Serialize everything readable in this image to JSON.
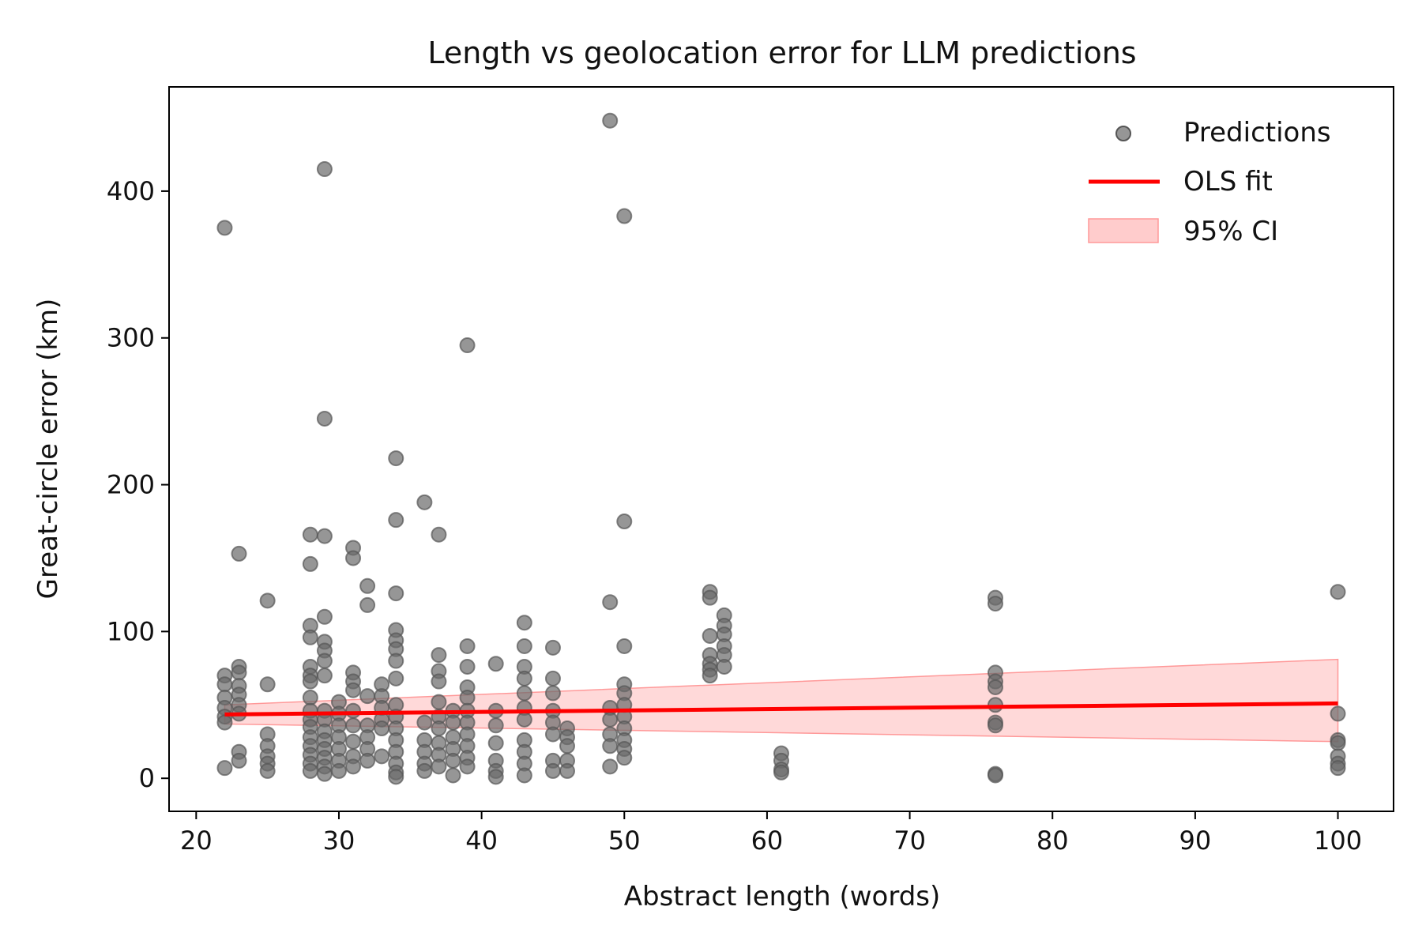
{
  "chart_data": {
    "type": "scatter",
    "title": "Length vs geolocation error for LLM predictions",
    "xlabel": "Abstract length (words)",
    "ylabel": "Great-circle error (km)",
    "xlim": [
      18.1,
      103.9
    ],
    "ylim": [
      -22.5,
      471
    ],
    "xticks": [
      20,
      30,
      40,
      50,
      60,
      70,
      80,
      90,
      100
    ],
    "yticks": [
      0,
      100,
      200,
      300,
      400
    ],
    "grid": false,
    "legend_position": "top-right",
    "legend": [
      "Predictions",
      "OLS fit",
      "95% CI"
    ],
    "colors": {
      "points": "#696969",
      "fit": "#ff0000",
      "ci_fill": "#ffcccc",
      "ci_edge": "#ff9999"
    },
    "series": [
      {
        "name": "Predictions",
        "points": [
          [
            22,
            375
          ],
          [
            22,
            70
          ],
          [
            22,
            64
          ],
          [
            22,
            55
          ],
          [
            22,
            48
          ],
          [
            22,
            42
          ],
          [
            22,
            38
          ],
          [
            22,
            7
          ],
          [
            23,
            153
          ],
          [
            23,
            76
          ],
          [
            23,
            72
          ],
          [
            23,
            63
          ],
          [
            23,
            57
          ],
          [
            23,
            50
          ],
          [
            23,
            44
          ],
          [
            23,
            18
          ],
          [
            23,
            12
          ],
          [
            25,
            121
          ],
          [
            25,
            64
          ],
          [
            25,
            30
          ],
          [
            25,
            22
          ],
          [
            25,
            15
          ],
          [
            25,
            10
          ],
          [
            25,
            5
          ],
          [
            28,
            166
          ],
          [
            28,
            146
          ],
          [
            28,
            104
          ],
          [
            28,
            96
          ],
          [
            28,
            76
          ],
          [
            28,
            70
          ],
          [
            28,
            66
          ],
          [
            28,
            55
          ],
          [
            28,
            46
          ],
          [
            28,
            40
          ],
          [
            28,
            35
          ],
          [
            28,
            28
          ],
          [
            28,
            22
          ],
          [
            28,
            16
          ],
          [
            28,
            10
          ],
          [
            28,
            5
          ],
          [
            29,
            415
          ],
          [
            29,
            245
          ],
          [
            29,
            165
          ],
          [
            29,
            110
          ],
          [
            29,
            93
          ],
          [
            29,
            87
          ],
          [
            29,
            80
          ],
          [
            29,
            70
          ],
          [
            29,
            46
          ],
          [
            29,
            40
          ],
          [
            29,
            32
          ],
          [
            29,
            26
          ],
          [
            29,
            20
          ],
          [
            29,
            14
          ],
          [
            29,
            8
          ],
          [
            29,
            3
          ],
          [
            30,
            52
          ],
          [
            30,
            44
          ],
          [
            30,
            36
          ],
          [
            30,
            28
          ],
          [
            30,
            20
          ],
          [
            30,
            12
          ],
          [
            30,
            5
          ],
          [
            31,
            157
          ],
          [
            31,
            150
          ],
          [
            31,
            72
          ],
          [
            31,
            66
          ],
          [
            31,
            60
          ],
          [
            31,
            46
          ],
          [
            31,
            36
          ],
          [
            31,
            25
          ],
          [
            31,
            15
          ],
          [
            31,
            8
          ],
          [
            32,
            131
          ],
          [
            32,
            118
          ],
          [
            32,
            56
          ],
          [
            32,
            36
          ],
          [
            32,
            28
          ],
          [
            32,
            20
          ],
          [
            32,
            12
          ],
          [
            33,
            64
          ],
          [
            33,
            56
          ],
          [
            33,
            48
          ],
          [
            33,
            40
          ],
          [
            33,
            34
          ],
          [
            33,
            15
          ],
          [
            34,
            218
          ],
          [
            34,
            176
          ],
          [
            34,
            126
          ],
          [
            34,
            101
          ],
          [
            34,
            94
          ],
          [
            34,
            88
          ],
          [
            34,
            80
          ],
          [
            34,
            68
          ],
          [
            34,
            50
          ],
          [
            34,
            42
          ],
          [
            34,
            34
          ],
          [
            34,
            26
          ],
          [
            34,
            18
          ],
          [
            34,
            10
          ],
          [
            34,
            4
          ],
          [
            34,
            1
          ],
          [
            36,
            188
          ],
          [
            36,
            38
          ],
          [
            36,
            26
          ],
          [
            36,
            18
          ],
          [
            36,
            10
          ],
          [
            36,
            5
          ],
          [
            37,
            166
          ],
          [
            37,
            84
          ],
          [
            37,
            73
          ],
          [
            37,
            66
          ],
          [
            37,
            52
          ],
          [
            37,
            42
          ],
          [
            37,
            34
          ],
          [
            37,
            24
          ],
          [
            37,
            16
          ],
          [
            37,
            8
          ],
          [
            38,
            46
          ],
          [
            38,
            38
          ],
          [
            38,
            28
          ],
          [
            38,
            20
          ],
          [
            38,
            12
          ],
          [
            38,
            2
          ],
          [
            39,
            295
          ],
          [
            39,
            90
          ],
          [
            39,
            76
          ],
          [
            39,
            62
          ],
          [
            39,
            55
          ],
          [
            39,
            46
          ],
          [
            39,
            38
          ],
          [
            39,
            30
          ],
          [
            39,
            22
          ],
          [
            39,
            14
          ],
          [
            39,
            8
          ],
          [
            41,
            78
          ],
          [
            41,
            46
          ],
          [
            41,
            36
          ],
          [
            41,
            24
          ],
          [
            41,
            12
          ],
          [
            41,
            5
          ],
          [
            41,
            1
          ],
          [
            43,
            106
          ],
          [
            43,
            90
          ],
          [
            43,
            76
          ],
          [
            43,
            68
          ],
          [
            43,
            58
          ],
          [
            43,
            48
          ],
          [
            43,
            40
          ],
          [
            43,
            26
          ],
          [
            43,
            18
          ],
          [
            43,
            10
          ],
          [
            43,
            2
          ],
          [
            45,
            89
          ],
          [
            45,
            68
          ],
          [
            45,
            58
          ],
          [
            45,
            46
          ],
          [
            45,
            38
          ],
          [
            45,
            30
          ],
          [
            45,
            12
          ],
          [
            45,
            5
          ],
          [
            46,
            34
          ],
          [
            46,
            28
          ],
          [
            46,
            22
          ],
          [
            46,
            12
          ],
          [
            46,
            5
          ],
          [
            49,
            448
          ],
          [
            49,
            120
          ],
          [
            49,
            48
          ],
          [
            49,
            40
          ],
          [
            49,
            30
          ],
          [
            49,
            22
          ],
          [
            49,
            8
          ],
          [
            50,
            383
          ],
          [
            50,
            175
          ],
          [
            50,
            90
          ],
          [
            50,
            64
          ],
          [
            50,
            58
          ],
          [
            50,
            50
          ],
          [
            50,
            42
          ],
          [
            50,
            34
          ],
          [
            50,
            26
          ],
          [
            50,
            20
          ],
          [
            50,
            14
          ],
          [
            56,
            127
          ],
          [
            56,
            123
          ],
          [
            56,
            97
          ],
          [
            56,
            84
          ],
          [
            56,
            78
          ],
          [
            56,
            74
          ],
          [
            56,
            70
          ],
          [
            57,
            111
          ],
          [
            57,
            104
          ],
          [
            57,
            98
          ],
          [
            57,
            90
          ],
          [
            57,
            84
          ],
          [
            57,
            76
          ],
          [
            61,
            17
          ],
          [
            61,
            12
          ],
          [
            61,
            6
          ],
          [
            61,
            4
          ],
          [
            76,
            123
          ],
          [
            76,
            119
          ],
          [
            76,
            72
          ],
          [
            76,
            66
          ],
          [
            76,
            62
          ],
          [
            76,
            50
          ],
          [
            76,
            38
          ],
          [
            76,
            36
          ],
          [
            76,
            3
          ],
          [
            76,
            2
          ],
          [
            100,
            127
          ],
          [
            100,
            44
          ],
          [
            100,
            26
          ],
          [
            100,
            24
          ],
          [
            100,
            15
          ],
          [
            100,
            10
          ],
          [
            100,
            7
          ]
        ]
      },
      {
        "name": "OLS fit",
        "x": [
          22,
          100
        ],
        "y": [
          43.5,
          51
        ]
      },
      {
        "name": "95% CI",
        "x": [
          22,
          100
        ],
        "lower": [
          37,
          25
        ],
        "upper": [
          50,
          81
        ]
      }
    ]
  }
}
